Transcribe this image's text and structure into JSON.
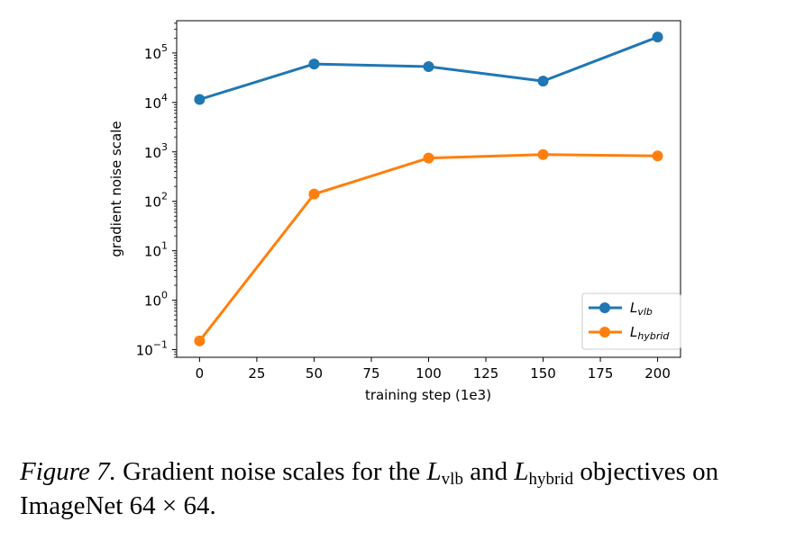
{
  "chart_data": {
    "type": "line",
    "title": "",
    "xlabel": "training step (1e3)",
    "ylabel": "gradient noise scale",
    "x": [
      0,
      50,
      100,
      150,
      200
    ],
    "xticks": [
      0,
      25,
      50,
      75,
      100,
      125,
      150,
      175,
      200
    ],
    "xtick_labels": [
      "0",
      "25",
      "50",
      "75",
      "100",
      "125",
      "150",
      "175",
      "200"
    ],
    "xlim": [
      -10,
      210
    ],
    "yscale": "log",
    "ylim": [
      0.07,
      450000
    ],
    "yticks": [
      0.1,
      1,
      10,
      100,
      1000,
      10000,
      100000
    ],
    "ytick_labels": [
      {
        "base": "10",
        "exp": "−1"
      },
      {
        "base": "10",
        "exp": "0"
      },
      {
        "base": "10",
        "exp": "1"
      },
      {
        "base": "10",
        "exp": "2"
      },
      {
        "base": "10",
        "exp": "3"
      },
      {
        "base": "10",
        "exp": "4"
      },
      {
        "base": "10",
        "exp": "5"
      }
    ],
    "grid": false,
    "legend_position": "lower-right",
    "series": [
      {
        "name": "L",
        "name_sub": "vlb",
        "color": "#1f77b4",
        "values": [
          11500,
          60000,
          53000,
          27000,
          210000
        ]
      },
      {
        "name": "L",
        "name_sub": "hybrid",
        "color": "#ff7f0e",
        "values": [
          0.15,
          140,
          750,
          880,
          830
        ]
      }
    ]
  },
  "caption": {
    "figure_label": "Figure 7.",
    "text_1": "Gradient noise scales for the",
    "math_1": "L",
    "math_1_sub": "vlb",
    "text_2": "and",
    "math_2": "L",
    "math_2_sub": "hybrid",
    "text_3": "objectives on ImageNet",
    "math_3": "64 × 64",
    "text_4": "."
  }
}
